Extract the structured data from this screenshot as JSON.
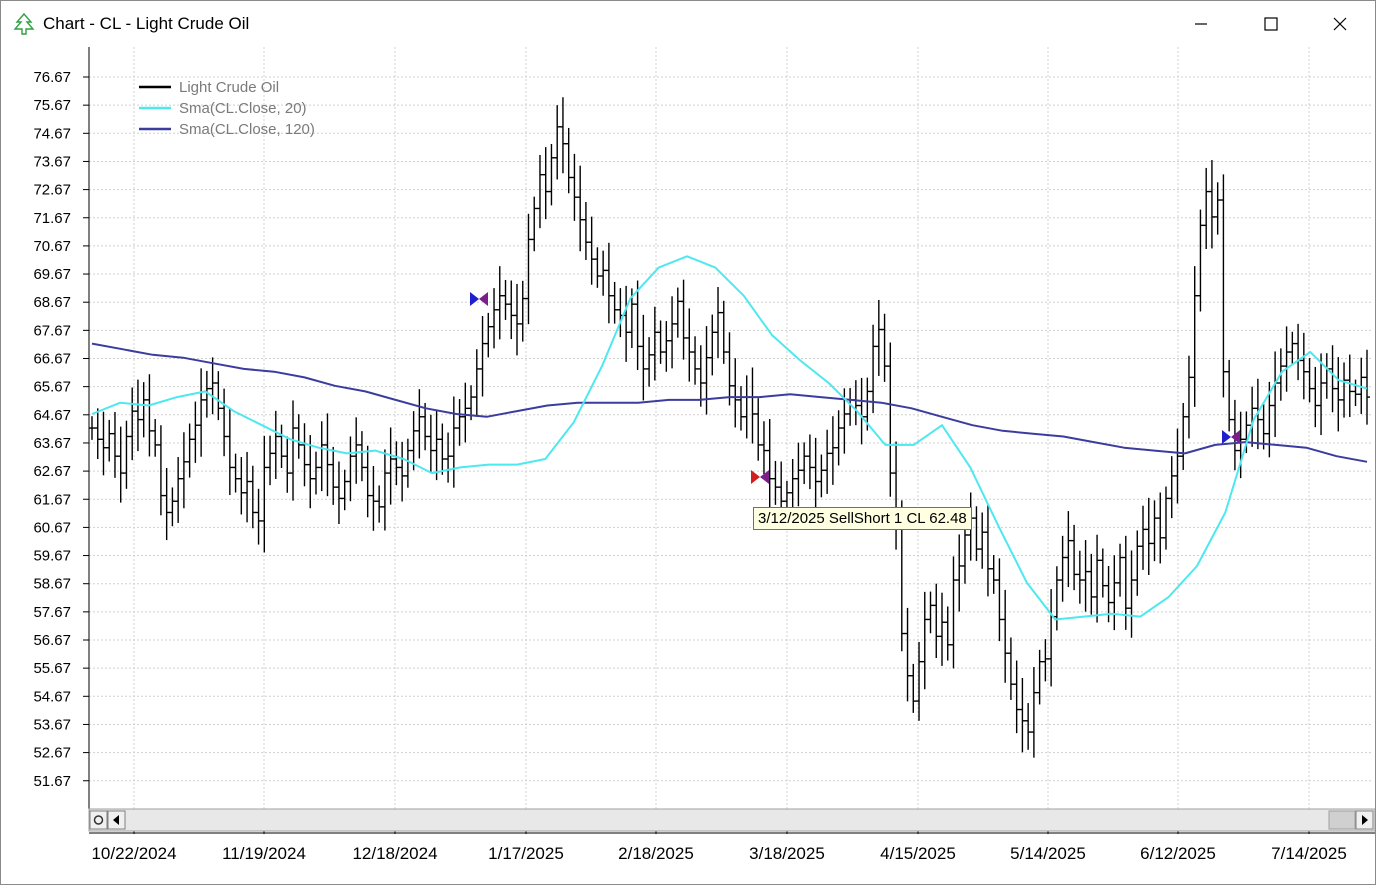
{
  "window": {
    "title": "Chart - CL - Light Crude Oil",
    "icon": "tree-icon",
    "controls": {
      "minimize_icon": "minimize-icon",
      "maximize_icon": "maximize-icon",
      "close_icon": "close-icon"
    }
  },
  "tooltip": {
    "text": "3/12/2025 SellShort 1 CL 62.48"
  },
  "scrollbar": {
    "left_icon": "scroll-left-icon",
    "right_icon": "scroll-right-icon",
    "settings_icon": "scroll-settings-icon"
  },
  "colors": {
    "price": "#000000",
    "sma20": "#4ee8ef",
    "sma120": "#3c3c9e",
    "grid": "#d0d0d0",
    "buy_marker": "#1f1fd0",
    "sell_marker": "#d01f1f",
    "exit_marker": "#7a1f8a"
  },
  "chart_data": {
    "type": "ohlc",
    "ylim": [
      50.67,
      77.67
    ],
    "yticks": [
      "76.67",
      "75.67",
      "74.67",
      "73.67",
      "72.67",
      "71.67",
      "70.67",
      "69.67",
      "68.67",
      "67.67",
      "66.67",
      "65.67",
      "64.67",
      "63.67",
      "62.67",
      "61.67",
      "60.67",
      "59.67",
      "58.67",
      "57.67",
      "56.67",
      "55.67",
      "54.67",
      "53.67",
      "52.67",
      "51.67"
    ],
    "xticks": [
      "10/22/2024",
      "11/19/2024",
      "12/18/2024",
      "1/17/2025",
      "2/18/2025",
      "3/18/2025",
      "4/15/2025",
      "5/14/2025",
      "6/12/2025",
      "7/14/2025"
    ],
    "legend": [
      {
        "name": "Light Crude Oil",
        "color": "#000000"
      },
      {
        "name": "Sma(CL.Close, 20)",
        "color": "#4ee8ef"
      },
      {
        "name": "Sma(CL.Close, 120)",
        "color": "#3c3c9e"
      }
    ],
    "legend_position": "top-left",
    "grid": true,
    "series": [
      {
        "name": "Light Crude Oil",
        "kind": "ohlc",
        "note": "daily bars, approximate"
      },
      {
        "name": "Sma(CL.Close, 20)",
        "kind": "line",
        "values": [
          64.7,
          65.1,
          65.0,
          65.3,
          65.5,
          64.8,
          64.3,
          63.8,
          63.5,
          63.3,
          63.4,
          63.1,
          62.6,
          62.8,
          62.9,
          62.9,
          63.1,
          64.4,
          66.4,
          68.8,
          69.9,
          70.3,
          69.9,
          68.9,
          67.5,
          66.6,
          65.8,
          64.8,
          63.6,
          63.6,
          64.3,
          62.8,
          60.7,
          58.7,
          57.4,
          57.5,
          57.6,
          57.5,
          58.2,
          59.3,
          61.2,
          64.5,
          66.2,
          66.9,
          65.9,
          65.6
        ]
      },
      {
        "name": "Sma(CL.Close, 120)",
        "kind": "line",
        "values": [
          67.2,
          67.0,
          66.8,
          66.7,
          66.5,
          66.3,
          66.2,
          66.0,
          65.7,
          65.5,
          65.2,
          64.9,
          64.7,
          64.6,
          64.8,
          65.0,
          65.1,
          65.1,
          65.1,
          65.2,
          65.2,
          65.3,
          65.3,
          65.4,
          65.3,
          65.2,
          65.1,
          64.9,
          64.6,
          64.3,
          64.1,
          64.0,
          63.9,
          63.7,
          63.5,
          63.4,
          63.3,
          63.6,
          63.7,
          63.6,
          63.5,
          63.2,
          63.0
        ]
      }
    ],
    "trades": [
      {
        "label": "buy",
        "price": 68.8,
        "date_index": 0
      },
      {
        "label": "SellShort",
        "date": "3/12/2025",
        "price": 62.48
      },
      {
        "label": "buy",
        "price": 63.8
      }
    ]
  }
}
